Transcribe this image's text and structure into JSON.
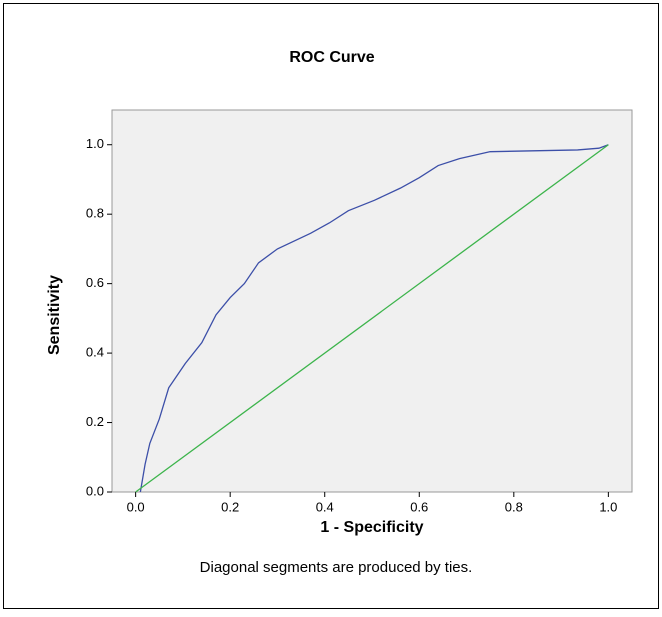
{
  "chart_data": {
    "type": "line",
    "title": "ROC Curve",
    "x_label": "1 - Specificity",
    "y_label": "Sensitivity",
    "note": "Diagonal segments are produced by ties.",
    "xlim": [
      -0.05,
      1.05
    ],
    "ylim": [
      0,
      1.1
    ],
    "xticks": [
      {
        "value": 0,
        "label": "0.0"
      },
      0.2,
      0.4,
      0.6,
      0.8,
      {
        "value": 1,
        "label": "1.0"
      }
    ],
    "yticks": [
      {
        "value": 0,
        "label": "0.0"
      },
      0.2,
      0.4,
      0.6,
      0.8,
      {
        "value": 1,
        "label": "1.0"
      }
    ],
    "series": [
      {
        "color": "#3c4fa8",
        "x": [
          0.01,
          0.02,
          0.03,
          0.05,
          0.07,
          0.085,
          0.105,
          0.14,
          0.17,
          0.2,
          0.23,
          0.26,
          0.3,
          0.37,
          0.41,
          0.45,
          0.505,
          0.56,
          0.6,
          0.64,
          0.685,
          0.75,
          0.935,
          0.98,
          1
        ],
        "values": [
          0,
          0.08,
          0.14,
          0.21,
          0.3,
          0.33,
          0.37,
          0.43,
          0.51,
          0.56,
          0.6,
          0.66,
          0.7,
          0.745,
          0.775,
          0.81,
          0.84,
          0.875,
          0.905,
          0.94,
          0.96,
          0.98,
          0.985,
          0.99,
          1
        ]
      },
      {
        "color": "#3cb44b",
        "x": [
          0,
          1
        ],
        "values": [
          0,
          1
        ]
      }
    ]
  }
}
